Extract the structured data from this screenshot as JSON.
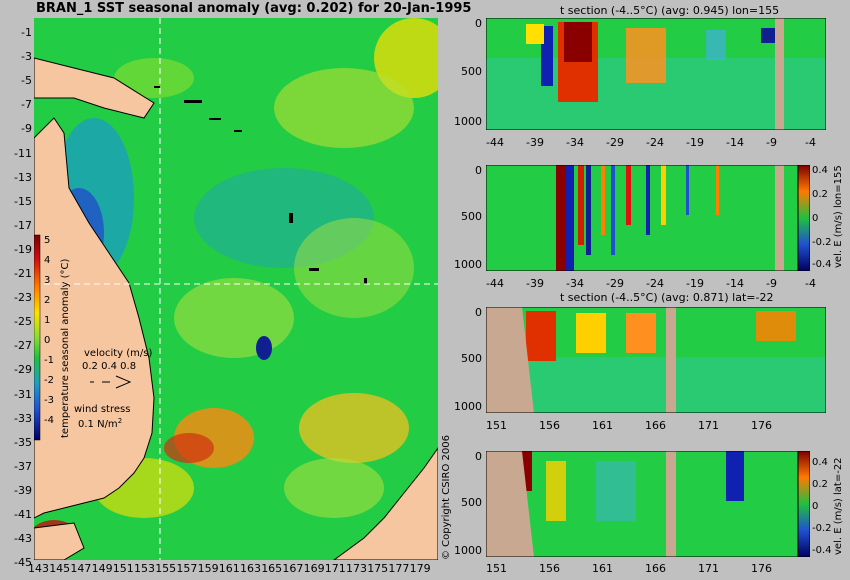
{
  "map": {
    "title": "BRAN_1 SST seasonal anomaly (avg: 0.202) for 20-Jan-1995",
    "lat_ticks": [
      "-1",
      "-3",
      "-5",
      "-7",
      "-9",
      "-11",
      "-13",
      "-15",
      "-17",
      "-19",
      "-21",
      "-23",
      "-25",
      "-27",
      "-29",
      "-31",
      "-33",
      "-35",
      "-37",
      "-39",
      "-41",
      "-43",
      "-45"
    ],
    "lon_ticks": [
      "143",
      "145",
      "147",
      "149",
      "151",
      "153",
      "155",
      "157",
      "159",
      "161",
      "163",
      "165",
      "167",
      "169",
      "171",
      "173",
      "175",
      "177",
      "179"
    ],
    "colorbar_ticks": [
      "5",
      "4",
      "3",
      "2",
      "1",
      "0",
      "-1",
      "-2",
      "-3",
      "-4"
    ],
    "colorbar_label": "temperature seasonal anomaly (°C)",
    "velocity_label": "velocity (m/s)",
    "velocity_scale": "0.2 0.4 0.8",
    "wind_label": "wind stress",
    "wind_scale": "0.1 N/m",
    "wind_scale_exp": "2",
    "copyright": "© Copyright CSIRO 2006",
    "section_lon": 155,
    "section_lat": -22
  },
  "panels": [
    {
      "title": "t section (-4..5°C) (avg: 0.945) lon=155",
      "x_ticks": [
        "-44",
        "-39",
        "-34",
        "-29",
        "-24",
        "-19",
        "-14",
        "-9",
        "-4"
      ],
      "y_ticks": [
        "0",
        "500",
        "1000"
      ]
    },
    {
      "title": "",
      "x_ticks": [
        "-44",
        "-39",
        "-34",
        "-29",
        "-24",
        "-19",
        "-14",
        "-9",
        "-4"
      ],
      "y_ticks": [
        "0",
        "500",
        "1000"
      ],
      "colorbar_ticks": [
        "0.4",
        "0.2",
        "0",
        "-0.2",
        "-0.4"
      ],
      "side_label": "vel. E (m/s) lon=155"
    },
    {
      "title": "t section (-4..5°C) (avg: 0.871) lat=-22",
      "x_ticks": [
        "151",
        "156",
        "161",
        "166",
        "171",
        "176"
      ],
      "y_ticks": [
        "0",
        "500",
        "1000"
      ]
    },
    {
      "title": "",
      "x_ticks": [
        "151",
        "156",
        "161",
        "166",
        "171",
        "176"
      ],
      "y_ticks": [
        "0",
        "500",
        "1000"
      ],
      "colorbar_ticks": [
        "0.4",
        "0.2",
        "0",
        "-0.2",
        "-0.4"
      ],
      "side_label": "vel. E (m/s) lat=-22"
    }
  ],
  "colors": {
    "land": "#f5c6a0",
    "background": "#c0c0c0",
    "ocean_base": "#22cc44"
  }
}
